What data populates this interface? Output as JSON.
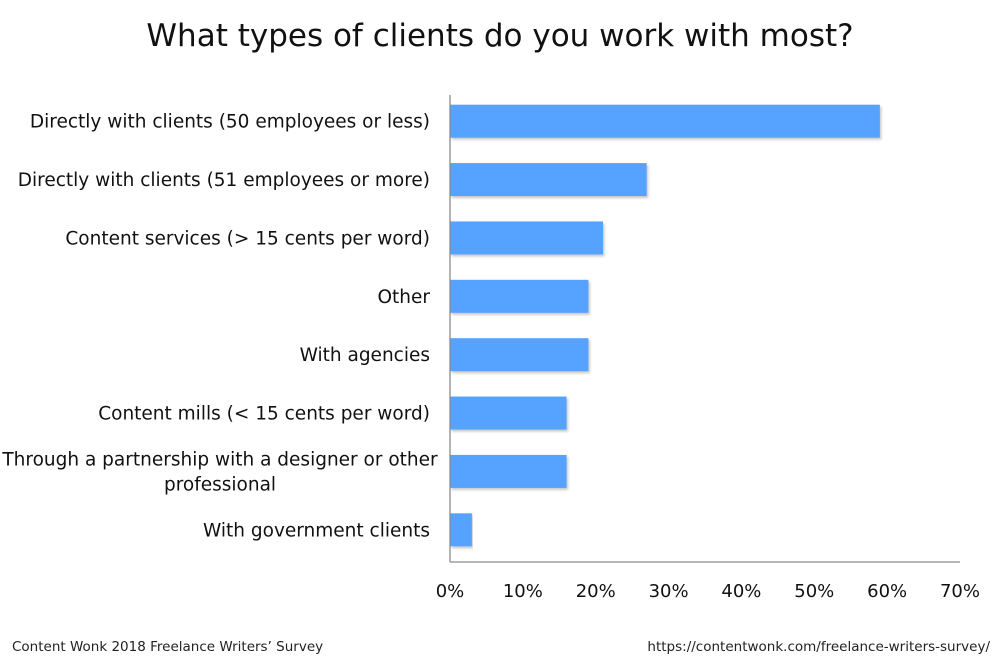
{
  "chart_data": {
    "type": "bar",
    "orientation": "horizontal",
    "title": "What types of clients do you work with most?",
    "categories": [
      "Directly with clients (50 employees or less)",
      "Directly with clients (51 employees or more)",
      "Content services (> 15 cents per word)",
      "Other ",
      "With agencies",
      "Content mills (< 15 cents per word)",
      "Through a partnership with a designer or other professional",
      "With government clients"
    ],
    "category_lines": [
      [
        "Directly with clients (50 employees or less)"
      ],
      [
        "Directly with clients (51 employees or more)"
      ],
      [
        "Content services (> 15 cents per word)"
      ],
      [
        "Other "
      ],
      [
        "With agencies"
      ],
      [
        "Content mills (< 15 cents per word)"
      ],
      [
        "Through a partnership with a designer or other",
        "professional"
      ],
      [
        "With government clients"
      ]
    ],
    "values": [
      59,
      27,
      21,
      19,
      19,
      16,
      16,
      3
    ],
    "xlim": [
      0,
      70
    ],
    "xticks": [
      0,
      10,
      20,
      30,
      40,
      50,
      60,
      70
    ],
    "xtick_labels": [
      "0%",
      "10%",
      "20%",
      "30%",
      "40%",
      "50%",
      "60%",
      "70%"
    ],
    "xlabel": "",
    "ylabel": "",
    "grid": false,
    "legend": "none",
    "bar_color": "#55a3ff",
    "bar_shadow_color": "#d3d3d3"
  },
  "footer": {
    "source": "Content Wonk 2018 Freelance Writers’ Survey",
    "url": "https://contentwonk.com/freelance-writers-survey/"
  }
}
